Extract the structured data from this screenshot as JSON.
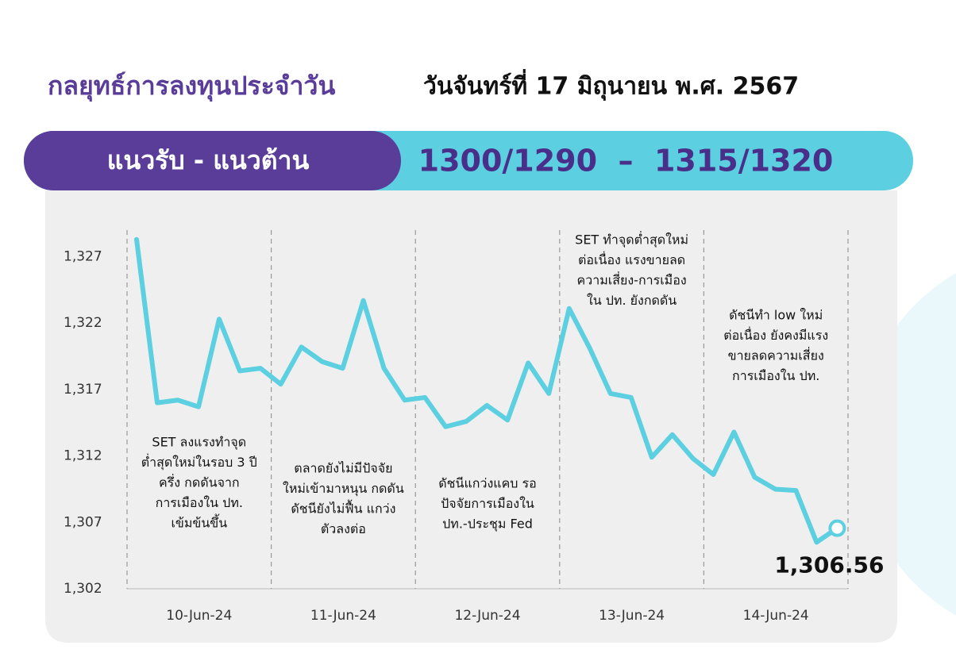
{
  "header": {
    "title": "กลยุทธ์การลงทุนประจำวัน",
    "date": "วันจันทร์ที่ 17 มิถุนายน พ.ศ. 2567"
  },
  "banner": {
    "label": "แนวรับ - แนวต้าน",
    "levels": "1300/1290  –  1315/1320"
  },
  "chart_data": {
    "type": "line",
    "color": "#5ccfe0",
    "ylim": [
      1302,
      1329
    ],
    "yticks": [
      {
        "value": 1302,
        "label": "1,302"
      },
      {
        "value": 1307,
        "label": "1,307"
      },
      {
        "value": 1312,
        "label": "1,312"
      },
      {
        "value": 1317,
        "label": "1,317"
      },
      {
        "value": 1322,
        "label": "1,322"
      },
      {
        "value": 1327,
        "label": "1,327"
      }
    ],
    "groups": [
      {
        "label": "10-Jun-24",
        "values": [
          1328.3,
          1316.0,
          1316.2,
          1315.7,
          1322.3,
          1318.4,
          1318.6
        ],
        "annotation": [
          "SET ลงแรงทำจุด",
          "ต่ำสุดใหม่ในรอบ 3 ปี",
          "ครึ่ง กดดันจาก",
          "การเมืองใน ปท.",
          "เข้มข้นขึ้น"
        ]
      },
      {
        "label": "11-Jun-24",
        "values": [
          1317.4,
          1320.2,
          1319.1,
          1318.6,
          1323.7,
          1318.6,
          1316.2
        ],
        "annotation": [
          "ตลาดยังไม่มีปัจจัย",
          "ใหม่เข้ามาหนุน กดดัน",
          "ดัชนียังไม่ฟื้น แกว่ง",
          "ตัวลงต่อ"
        ]
      },
      {
        "label": "12-Jun-24",
        "values": [
          1316.4,
          1314.2,
          1314.6,
          1315.8,
          1314.7,
          1319.0,
          1316.7
        ],
        "annotation": [
          "ดัชนีแกว่งแคบ รอ",
          "ปัจจัยการเมืองใน",
          "ปท.-ประชุม Fed"
        ]
      },
      {
        "label": "13-Jun-24",
        "values": [
          1323.1,
          1320.1,
          1316.7,
          1316.4,
          1311.9,
          1313.6,
          1311.8
        ],
        "annotation": [
          "SET ทำจุดต่ำสุดใหม่",
          "ต่อเนื่อง แรงขายลด",
          "ความเสี่ยง-การเมือง",
          "ใน ปท. ยังกดดัน"
        ]
      },
      {
        "label": "14-Jun-24",
        "values": [
          1310.6,
          1313.8,
          1310.4,
          1309.5,
          1309.4,
          1305.5,
          1306.56
        ],
        "value_labels": [
          null,
          null,
          null,
          null,
          null,
          null,
          "1,306.56"
        ],
        "annotation": [
          "ดัชนีทำ low ใหม่",
          "ต่อเนื่อง ยังคงมีแรง",
          "ขายลดความเสี่ยง",
          "การเมืองใน ปท."
        ]
      }
    ]
  }
}
